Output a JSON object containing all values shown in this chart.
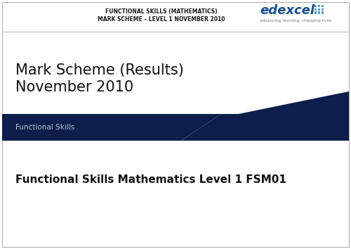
{
  "bg_color": "#ffffff",
  "border_color": "#b0b0b0",
  "dark_navy": "#0d1e4c",
  "header_text_line1": "FUNCTIONAL SKILLS (MATHEMATICS)",
  "header_text_line2": "MARK SCHEME – LEVEL 1 NOVEMBER 2010",
  "edexcel_text": "edexcel",
  "edexcel_tagline": "advancing learning, changing lives",
  "title_line1": "Mark Scheme (Results)",
  "title_line2": "November 2010",
  "banner_label": "Functional Skills",
  "subtitle": "Functional Skills Mathematics Level 1 FSM01",
  "title_fontsize": 15,
  "subtitle_fontsize": 11,
  "banner_label_fontsize": 7.5,
  "header_fontsize": 5.5,
  "edexcel_fontsize": 13,
  "dot_color": "#5b9bd5"
}
